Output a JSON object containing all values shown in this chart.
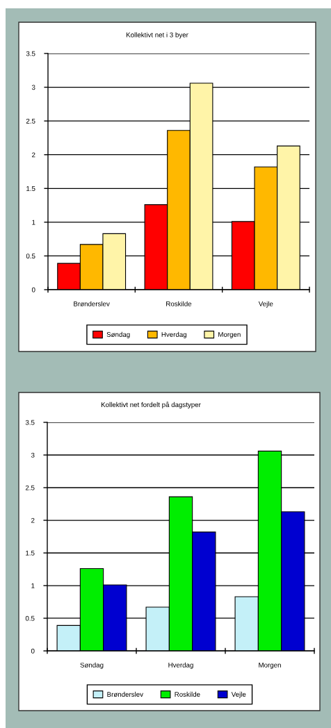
{
  "chart_data": [
    {
      "type": "bar",
      "title": "Kollektivt net i 3 byer",
      "categories": [
        "Brønderslev",
        "Roskilde",
        "Vejle"
      ],
      "series": [
        {
          "name": "Søndag",
          "color": "#ff0000",
          "values": [
            0.39,
            1.26,
            1.01
          ]
        },
        {
          "name": "Hverdag",
          "color": "#ffb800",
          "values": [
            0.67,
            2.36,
            1.82
          ]
        },
        {
          "name": "Morgen",
          "color": "#fff4a8",
          "values": [
            0.83,
            3.06,
            2.13
          ]
        }
      ],
      "ylim": [
        0,
        3.5
      ],
      "yticks": [
        0,
        0.5,
        1,
        1.5,
        2,
        2.5,
        3,
        3.5
      ],
      "grid": "y",
      "legend": "bottom"
    },
    {
      "type": "bar",
      "title": "Kollektivt net fordelt på dagstyper",
      "categories": [
        "Søndag",
        "Hverdag",
        "Morgen"
      ],
      "series": [
        {
          "name": "Brønderslev",
          "color": "#c4f0f8",
          "values": [
            0.39,
            0.67,
            0.83
          ]
        },
        {
          "name": "Roskilde",
          "color": "#00ee00",
          "values": [
            1.26,
            2.36,
            3.06
          ]
        },
        {
          "name": "Vejle",
          "color": "#0000d0",
          "values": [
            1.01,
            1.82,
            2.13
          ]
        }
      ],
      "ylim": [
        0,
        3.5
      ],
      "yticks": [
        0,
        0.5,
        1,
        1.5,
        2,
        2.5,
        3,
        3.5
      ],
      "grid": "y",
      "legend": "bottom"
    }
  ]
}
